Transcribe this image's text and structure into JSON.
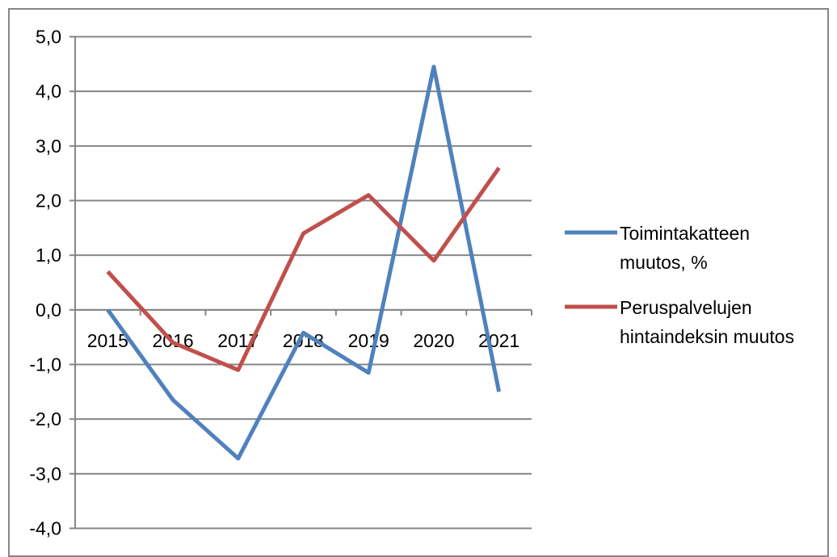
{
  "chart_data": {
    "type": "line",
    "title": "",
    "xlabel": "",
    "ylabel": "",
    "categories": [
      "2015",
      "2016",
      "2017",
      "2018",
      "2019",
      "2020",
      "2021"
    ],
    "ylim": [
      -4,
      5
    ],
    "yticks": [
      "-4,0",
      "-3,0",
      "-2,0",
      "-1,0",
      "0,0",
      "1,0",
      "2,0",
      "3,0",
      "4,0",
      "5,0"
    ],
    "grid": true,
    "legend_position": "right",
    "series": [
      {
        "name_lines": [
          "Toimintakatteen",
          "muutos, %"
        ],
        "color": "#4f81bd",
        "values": [
          0.0,
          -1.65,
          -2.72,
          -0.42,
          -1.15,
          4.45,
          -1.5
        ]
      },
      {
        "name_lines": [
          "Peruspalvelujen",
          "hintaindeksin muutos"
        ],
        "color": "#c0504d",
        "values": [
          0.7,
          -0.6,
          -1.1,
          1.4,
          2.1,
          0.9,
          2.6
        ]
      }
    ]
  }
}
